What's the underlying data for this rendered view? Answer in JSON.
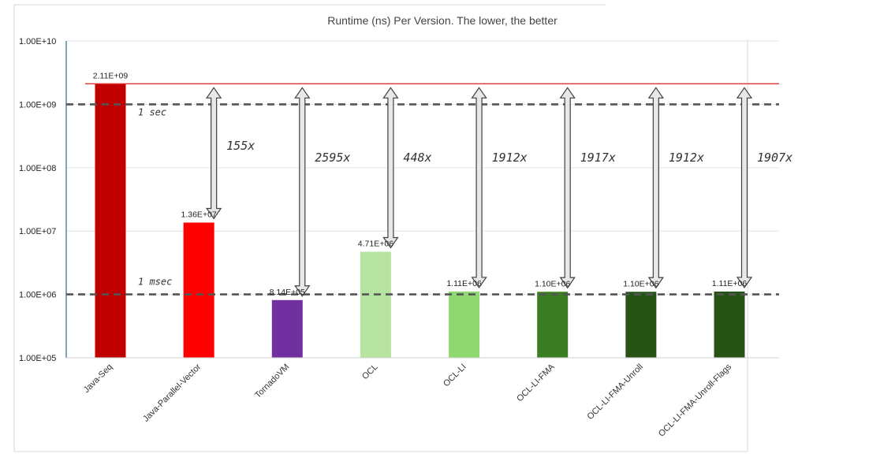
{
  "chart_data": {
    "type": "bar",
    "title": "Runtime (ns) Per Version. The lower, the better",
    "xlabel": "",
    "ylabel": "",
    "scale": "log",
    "ylim": [
      100000,
      10000000000
    ],
    "yticks": [
      "1.00E+05",
      "1.00E+06",
      "1.00E+07",
      "1.00E+08",
      "1.00E+09",
      "1.00E+10"
    ],
    "grid": true,
    "legend": "none",
    "categories": [
      "Java-Seq",
      "Java-Parallel-Vector",
      "TornadoVM",
      "OCL",
      "OCL-LI",
      "OCL-LI-FMA",
      "OCL-LI-FMA-Unroll",
      "OCL-LI-FMA-Unroll-Flags"
    ],
    "values": [
      2110000000,
      13600000,
      814000,
      4710000,
      1110000,
      1100000,
      1100000,
      1110000
    ],
    "data_labels": [
      "2.11E+09",
      "1.36E+07",
      "8.14E+05",
      "4.71E+06",
      "1.11E+06",
      "1.10E+06",
      "1.10E+06",
      "1.11E+06"
    ],
    "colors": [
      "#c00000",
      "#ff0000",
      "#7030a0",
      "#b6e4a0",
      "#8fd970",
      "#3a7d22",
      "#275317",
      "#275317"
    ],
    "speedups": [
      "",
      "155x",
      "2595x",
      "448x",
      "1912x",
      "1917x",
      "1912x",
      "1907x"
    ],
    "baseline_color": "#e03030",
    "reference_lines": [
      {
        "value": 1000000000,
        "label": "1 sec"
      },
      {
        "value": 1000000,
        "label": "1 msec"
      }
    ]
  }
}
